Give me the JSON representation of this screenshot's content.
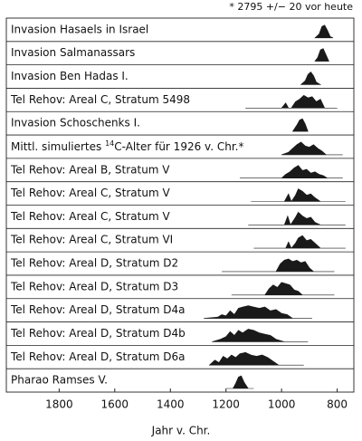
{
  "footnote": "* 2795 +/− 20 vor heute",
  "chart_data": {
    "type": "ridge",
    "x_label": "Jahr v. Chr.",
    "xlim": [
      1990,
      740
    ],
    "xticks": [
      1800,
      1600,
      1400,
      1200,
      1000,
      800
    ],
    "color": "#1a1a1a",
    "rows": [
      {
        "label": "Invasion Hasaels in Israel",
        "x": [
          880,
          865,
          855,
          845,
          835,
          825,
          815
        ],
        "values": [
          0,
          0.3,
          0.9,
          1,
          0.6,
          0.1,
          0
        ]
      },
      {
        "label": "Invasion Salmanassars",
        "x": [
          880,
          870,
          860,
          850,
          840,
          830
        ],
        "values": [
          0,
          0.3,
          0.9,
          1,
          0.5,
          0
        ]
      },
      {
        "label": "Invasion Ben Hadas I.",
        "x": [
          930,
          915,
          905,
          895,
          885,
          875,
          860
        ],
        "values": [
          0,
          0.3,
          0.8,
          1,
          0.7,
          0.2,
          0
        ]
      },
      {
        "label": "Tel Rehov: Areal C, Stratum 5498",
        "x": [
          1130,
          1000,
          985,
          975,
          965,
          950,
          935,
          920,
          905,
          890,
          875,
          860,
          845,
          800
        ],
        "values": [
          0,
          0,
          0.4,
          0,
          0,
          0.5,
          0.7,
          1,
          0.8,
          0.9,
          0.5,
          0.7,
          0,
          0
        ]
      },
      {
        "label": "Invasion Schoschenks I.",
        "x": [
          960,
          945,
          935,
          925,
          915,
          905
        ],
        "values": [
          0,
          0.5,
          0.9,
          1,
          0.6,
          0
        ]
      },
      {
        "label": [
          "Mittl. simuliertes ",
          "14",
          "C-Alter für 1926 v. Chr.*"
        ],
        "x": [
          1000,
          975,
          960,
          945,
          930,
          915,
          900,
          885,
          870,
          855,
          840,
          780
        ],
        "values": [
          0,
          0.2,
          0.5,
          0.8,
          1,
          0.7,
          0.6,
          0.8,
          0.5,
          0.3,
          0,
          0
        ]
      },
      {
        "label": "Tel Rehov: Areal B, Stratum V",
        "x": [
          1150,
          1000,
          985,
          970,
          955,
          940,
          925,
          910,
          895,
          880,
          865,
          850,
          835,
          780
        ],
        "values": [
          0,
          0,
          0.3,
          0.5,
          0.8,
          1,
          0.6,
          0.7,
          0.4,
          0.5,
          0.3,
          0.2,
          0,
          0
        ]
      },
      {
        "label": "Tel Rehov: Areal C, Stratum V",
        "x": [
          1110,
          990,
          975,
          965,
          950,
          940,
          925,
          910,
          895,
          880,
          860,
          770
        ],
        "values": [
          0,
          0,
          0.6,
          0,
          0.5,
          1,
          0.8,
          0.5,
          0.6,
          0.3,
          0,
          0
        ]
      },
      {
        "label": "Tel Rehov: Areal C, Stratum V",
        "x": [
          1120,
          990,
          978,
          968,
          950,
          940,
          925,
          910,
          895,
          880,
          860,
          770
        ],
        "values": [
          0,
          0,
          0.7,
          0,
          0.6,
          1,
          0.7,
          0.5,
          0.6,
          0.2,
          0,
          0
        ]
      },
      {
        "label": "Tel Rehov: Areal C, Stratum VI",
        "x": [
          1100,
          985,
          975,
          965,
          950,
          940,
          925,
          910,
          895,
          880,
          860,
          770
        ],
        "values": [
          0,
          0,
          0.5,
          0,
          0.4,
          0.8,
          1,
          0.6,
          0.7,
          0.4,
          0,
          0
        ]
      },
      {
        "label": "Tel Rehov: Areal D, Stratum D2",
        "x": [
          1215,
          1020,
          1005,
          990,
          975,
          960,
          945,
          930,
          915,
          900,
          885,
          810
        ],
        "values": [
          0,
          0,
          0.6,
          0.9,
          1,
          0.8,
          0.9,
          0.7,
          0.8,
          0.3,
          0,
          0
        ]
      },
      {
        "label": "Tel Rehov: Areal D, Stratum D3",
        "x": [
          1180,
          1060,
          1045,
          1030,
          1015,
          1000,
          985,
          970,
          955,
          940,
          925,
          810
        ],
        "values": [
          0,
          0,
          0.5,
          0.8,
          0.6,
          1,
          0.9,
          0.8,
          0.4,
          0.3,
          0,
          0
        ]
      },
      {
        "label": "Tel Rehov: Areal D, Stratum D4a",
        "x": [
          1280,
          1230,
          1215,
          1200,
          1185,
          1170,
          1155,
          1140,
          1120,
          1100,
          1080,
          1060,
          1040,
          1020,
          1000,
          980,
          960,
          890
        ],
        "values": [
          0,
          0.1,
          0.3,
          0.2,
          0.6,
          0.3,
          0.8,
          0.9,
          1,
          0.9,
          0.8,
          0.9,
          0.6,
          0.7,
          0.4,
          0.3,
          0,
          0
        ]
      },
      {
        "label": "Tel Rehov: Areal D, Stratum D4b",
        "x": [
          1250,
          1220,
          1200,
          1185,
          1170,
          1155,
          1140,
          1120,
          1100,
          1080,
          1060,
          1040,
          1020,
          1005,
          990,
          905
        ],
        "values": [
          0,
          0.2,
          0.4,
          0.8,
          0.5,
          0.9,
          0.7,
          1,
          0.9,
          0.7,
          0.6,
          0.5,
          0.2,
          0.1,
          0,
          0
        ]
      },
      {
        "label": "Tel Rehov: Areal D, Stratum D6a",
        "x": [
          1260,
          1240,
          1225,
          1210,
          1195,
          1180,
          1165,
          1150,
          1130,
          1110,
          1090,
          1070,
          1050,
          1030,
          1010,
          920
        ],
        "values": [
          0,
          0.4,
          0.2,
          0.7,
          0.5,
          0.8,
          0.6,
          0.9,
          1,
          0.8,
          0.7,
          0.8,
          0.6,
          0.3,
          0,
          0
        ]
      },
      {
        "label": "Pharao Ramses V.",
        "x": [
          1200,
          1175,
          1165,
          1155,
          1145,
          1135,
          1120,
          1100
        ],
        "values": [
          0,
          0,
          0.4,
          0.9,
          1,
          0.5,
          0,
          0
        ]
      }
    ]
  }
}
